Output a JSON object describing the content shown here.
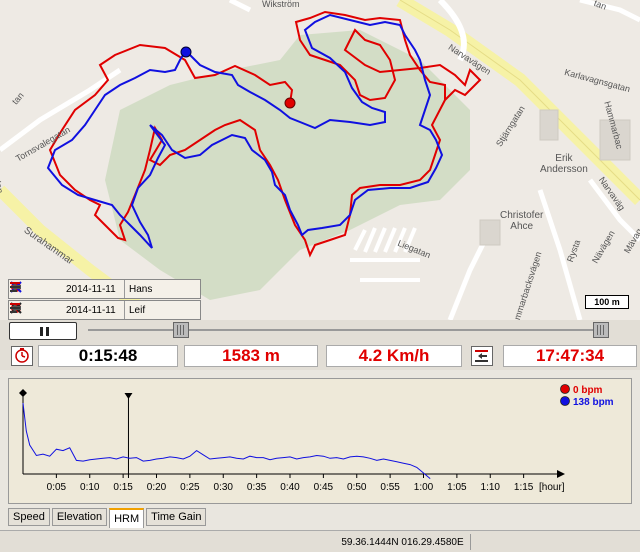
{
  "map": {
    "labels": {
      "wikstrom": "Wikström",
      "narvavagen1": "Narvavägen",
      "karlavagnsgatan": "Karlavagnsgatan",
      "hammarback": "Hammarbac",
      "stjarngatan": "Stjärngatan",
      "erik_andersson": "Erik\nAndersson",
      "christofer_ahce": "Christofer\nAhce",
      "tornsvalegatan": "Tornsvalegatan",
      "surahammar": "Surahammar",
      "liegatan": "Liegatan",
      "narvavag2": "Narvaväg",
      "hammarbacksvagen": "mmarbacksvägen",
      "ovagen": "Nävägen",
      "tan": "tan",
      "tan2": "tan",
      "tan3": "tan",
      "rysta": "Rysta",
      "mavag": "Mävag"
    },
    "scale": "100 m",
    "track_colors": {
      "hans": "#e00000",
      "leif": "#1010e0"
    }
  },
  "participants": [
    {
      "date": "2014-11-11",
      "name": "Hans",
      "color": "#e00000"
    },
    {
      "date": "2014-11-11",
      "name": "Leif",
      "color": "#1010e0"
    }
  ],
  "stats": {
    "elapsed": "0:15:48",
    "distance": "1583 m",
    "speed": "4.2 Km/h",
    "clock": "17:47:34"
  },
  "chart": {
    "legend": [
      {
        "label": "0 bpm",
        "color": "#e00000"
      },
      {
        "label": "138 bpm",
        "color": "#1010e0"
      }
    ],
    "x_unit": "[hour]",
    "x_ticks": [
      "0:05",
      "0:10",
      "0:15",
      "0:20",
      "0:25",
      "0:30",
      "0:35",
      "0:40",
      "0:45",
      "0:50",
      "0:55",
      "1:00",
      "1:05",
      "1:10",
      "1:15"
    ]
  },
  "chart_data": {
    "type": "line",
    "x_ticks": [
      "0:05",
      "0:10",
      "0:15",
      "0:20",
      "0:25",
      "0:30",
      "0:35",
      "0:40",
      "0:45",
      "0:50",
      "0:55",
      "1:00",
      "1:05",
      "1:10",
      "1:15"
    ],
    "xlabel": "[hour]",
    "xlim": [
      0,
      80
    ],
    "cursor_minutes": 15.8,
    "series": [
      {
        "name": "138 bpm",
        "color": "#1010e0",
        "x": [
          0,
          0.5,
          1,
          2,
          3,
          4,
          5,
          6,
          7,
          8,
          9,
          10,
          11,
          12,
          13,
          14,
          15,
          16,
          17,
          18,
          19,
          20,
          21,
          22,
          23,
          24,
          25,
          26,
          27,
          28,
          29,
          30,
          31,
          32,
          33,
          34,
          35,
          36,
          37,
          38,
          39,
          40,
          41,
          42,
          43,
          44,
          45,
          46,
          47,
          48,
          49,
          50,
          51,
          52,
          53,
          54,
          55,
          56,
          57,
          58,
          59,
          60,
          61
        ],
        "y": [
          20,
          60,
          80,
          95,
          93,
          96,
          86,
          88,
          84,
          102,
          103,
          101,
          100,
          99,
          98,
          100,
          97,
          99,
          98,
          103,
          102,
          100,
          99,
          97,
          98,
          100,
          96,
          88,
          94,
          100,
          99,
          98,
          97,
          99,
          100,
          96,
          98,
          98,
          101,
          99,
          98,
          97,
          100,
          98,
          97,
          95,
          96,
          99,
          98,
          100,
          97,
          96,
          97,
          99,
          102,
          100,
          102,
          104,
          106,
          108,
          112,
          120,
          128
        ]
      }
    ]
  },
  "tabs": [
    "Speed",
    "Elevation",
    "HRM",
    "Time Gain"
  ],
  "active_tab": "HRM",
  "status": {
    "coords": "59.36.1444N 016.29.4580E"
  }
}
